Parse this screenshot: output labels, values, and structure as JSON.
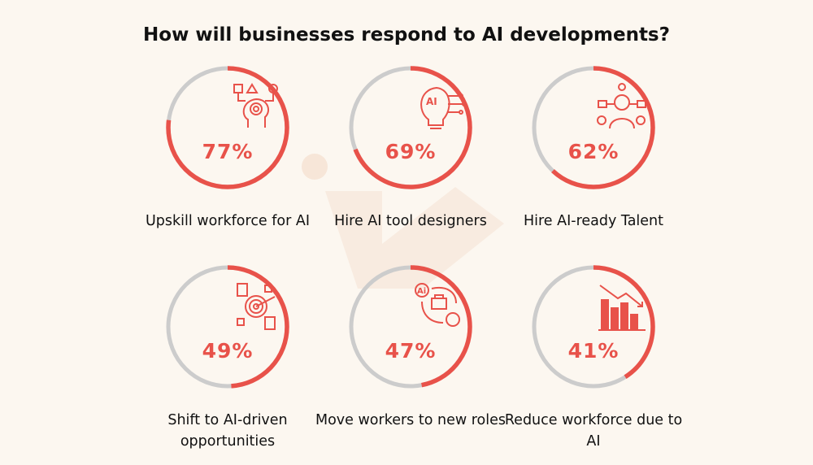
{
  "chart_data": {
    "type": "donut-progress",
    "title": "How will businesses respond to AI developments?",
    "items": [
      {
        "label": "Upskill workforce for AI",
        "value": 77,
        "display": "77%",
        "icon": "head-gear-shapes-icon"
      },
      {
        "label": "Hire AI tool designers",
        "value": 69,
        "display": "69%",
        "icon": "ai-lightbulb-icon"
      },
      {
        "label": "Hire AI-ready Talent",
        "value": 62,
        "display": "62%",
        "icon": "person-network-icon"
      },
      {
        "label": "Shift to AI-driven opportunities",
        "value": 49,
        "display": "49%",
        "icon": "target-documents-icon"
      },
      {
        "label": "Move workers to new roles",
        "value": 47,
        "display": "47%",
        "icon": "ai-briefcase-transfer-icon"
      },
      {
        "label": "Reduce workforce due to AI",
        "value": 41,
        "display": "41%",
        "icon": "declining-bar-chart-icon"
      }
    ],
    "colors": {
      "progress": "#e8524a",
      "remainder": "#cccccc",
      "background": "#fcf7f0"
    }
  }
}
